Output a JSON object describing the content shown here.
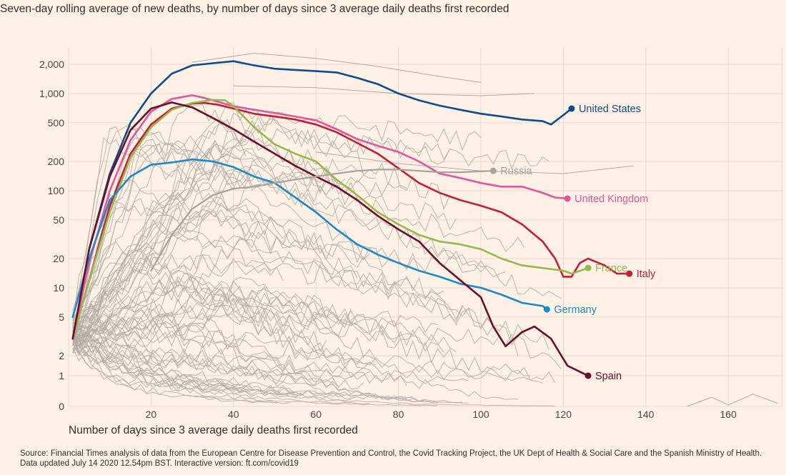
{
  "subtitle": "Seven-day rolling average of new deaths, by number of days since 3 average daily deaths first recorded",
  "xlabel": "Number of days since 3 average daily deaths first recorded",
  "source_line1": "Source: Financial Times analysis of data from the European Centre for Disease Prevention and Control, the Covid Tracking Project, the UK Dept of Health & Social Care and the Spanish Ministry of Health.",
  "source_line2": "Data updated July 14 2020 12.54pm BST. Interactive version: ft.com/covid19",
  "colors": {
    "background": "#fff1e5",
    "grid": "#e6d9ce",
    "others": "#b3aba5",
    "United States": "#0f4b8e",
    "United Kingdom": "#e0589a",
    "Italy": "#c41e3a",
    "France": "#96b94b",
    "Germany": "#1c8ac9",
    "Spain": "#6b0f2a",
    "Russia": "#a8a29c"
  },
  "chart_data": {
    "type": "line",
    "yscale": "symlog",
    "x_ticks": [
      20,
      40,
      60,
      80,
      100,
      120,
      140,
      160
    ],
    "x_tick_labels": [
      "20",
      "40",
      "60",
      "80",
      "100",
      "120",
      "140",
      "160"
    ],
    "y_ticks": [
      0,
      1,
      2,
      5,
      10,
      20,
      50,
      100,
      200,
      500,
      1000,
      2000
    ],
    "y_tick_labels": [
      "0",
      "1",
      "2",
      "5",
      "10",
      "20",
      "50",
      "100",
      "200",
      "500",
      "1,000",
      "2,000"
    ],
    "xlim": [
      0,
      175
    ],
    "ylim": [
      0,
      3000
    ],
    "grid": true,
    "series": [
      {
        "name": "United States",
        "x": [
          1,
          5,
          10,
          15,
          20,
          25,
          30,
          35,
          40,
          45,
          50,
          55,
          60,
          65,
          70,
          75,
          80,
          85,
          90,
          95,
          100,
          105,
          110,
          115,
          117,
          120,
          122
        ],
        "y": [
          3,
          25,
          150,
          500,
          1000,
          1600,
          1950,
          2050,
          2150,
          1950,
          1800,
          1750,
          1700,
          1650,
          1450,
          1250,
          1000,
          850,
          750,
          680,
          620,
          580,
          540,
          520,
          480,
          600,
          700
        ]
      },
      {
        "name": "United Kingdom",
        "x": [
          1,
          5,
          10,
          15,
          20,
          25,
          30,
          33,
          40,
          45,
          50,
          55,
          60,
          65,
          70,
          75,
          80,
          85,
          90,
          95,
          100,
          105,
          110,
          115,
          118,
          121
        ],
        "y": [
          3,
          18,
          100,
          330,
          650,
          880,
          960,
          900,
          740,
          680,
          630,
          580,
          530,
          430,
          340,
          290,
          250,
          200,
          150,
          135,
          120,
          110,
          110,
          95,
          85,
          83
        ]
      },
      {
        "name": "Italy",
        "x": [
          1,
          5,
          10,
          15,
          20,
          25,
          30,
          33,
          36,
          40,
          45,
          50,
          55,
          60,
          65,
          70,
          75,
          80,
          85,
          90,
          95,
          100,
          105,
          110,
          115,
          118,
          120,
          122,
          124,
          126,
          130,
          133,
          136
        ],
        "y": [
          3,
          12,
          70,
          240,
          480,
          700,
          790,
          800,
          770,
          700,
          620,
          580,
          540,
          480,
          400,
          310,
          240,
          170,
          120,
          95,
          80,
          70,
          60,
          45,
          30,
          20,
          13,
          13,
          18,
          20,
          17,
          14,
          14
        ]
      },
      {
        "name": "France",
        "x": [
          1,
          5,
          10,
          15,
          20,
          25,
          30,
          35,
          38,
          40,
          45,
          50,
          55,
          60,
          65,
          70,
          75,
          80,
          85,
          90,
          95,
          100,
          105,
          110,
          115,
          120,
          122,
          126
        ],
        "y": [
          3,
          12,
          60,
          220,
          450,
          680,
          800,
          860,
          850,
          740,
          450,
          300,
          240,
          200,
          130,
          90,
          60,
          45,
          35,
          30,
          28,
          25,
          20,
          17,
          16,
          15,
          14,
          16
        ]
      },
      {
        "name": "Germany",
        "x": [
          1,
          5,
          10,
          15,
          20,
          25,
          30,
          35,
          40,
          45,
          50,
          55,
          60,
          65,
          70,
          75,
          80,
          85,
          90,
          95,
          100,
          105,
          110,
          115,
          116
        ],
        "y": [
          5,
          20,
          80,
          140,
          185,
          195,
          210,
          200,
          175,
          140,
          120,
          85,
          60,
          40,
          28,
          22,
          18,
          15,
          13,
          11,
          10,
          8.5,
          7,
          6.5,
          6
        ]
      },
      {
        "name": "Spain",
        "x": [
          1,
          5,
          10,
          15,
          20,
          25,
          30,
          35,
          40,
          45,
          50,
          55,
          60,
          65,
          70,
          75,
          80,
          85,
          90,
          95,
          100,
          103,
          106,
          110,
          113,
          117,
          121,
          124,
          126
        ],
        "y": [
          3,
          25,
          140,
          420,
          700,
          810,
          720,
          560,
          430,
          320,
          240,
          180,
          140,
          110,
          80,
          55,
          40,
          30,
          18,
          12,
          8,
          4,
          2.5,
          3.5,
          4,
          3,
          1.5,
          1.2,
          1
        ]
      },
      {
        "name": "Russia",
        "x": [
          20,
          25,
          30,
          35,
          40,
          45,
          50,
          55,
          60,
          65,
          70,
          75,
          80,
          85,
          90,
          95,
          100,
          103
        ],
        "y": [
          15,
          35,
          65,
          90,
          105,
          110,
          120,
          130,
          140,
          150,
          160,
          165,
          165,
          160,
          155,
          155,
          158,
          160
        ]
      }
    ],
    "end_labels": [
      {
        "name": "United States",
        "x": 122,
        "y": 700
      },
      {
        "name": "Russia",
        "x": 103,
        "y": 160
      },
      {
        "name": "United Kingdom",
        "x": 121,
        "y": 83
      },
      {
        "name": "France",
        "x": 126,
        "y": 16
      },
      {
        "name": "Italy",
        "x": 136,
        "y": 14
      },
      {
        "name": "Germany",
        "x": 116,
        "y": 6
      },
      {
        "name": "Spain",
        "x": 126,
        "y": 1
      }
    ]
  }
}
